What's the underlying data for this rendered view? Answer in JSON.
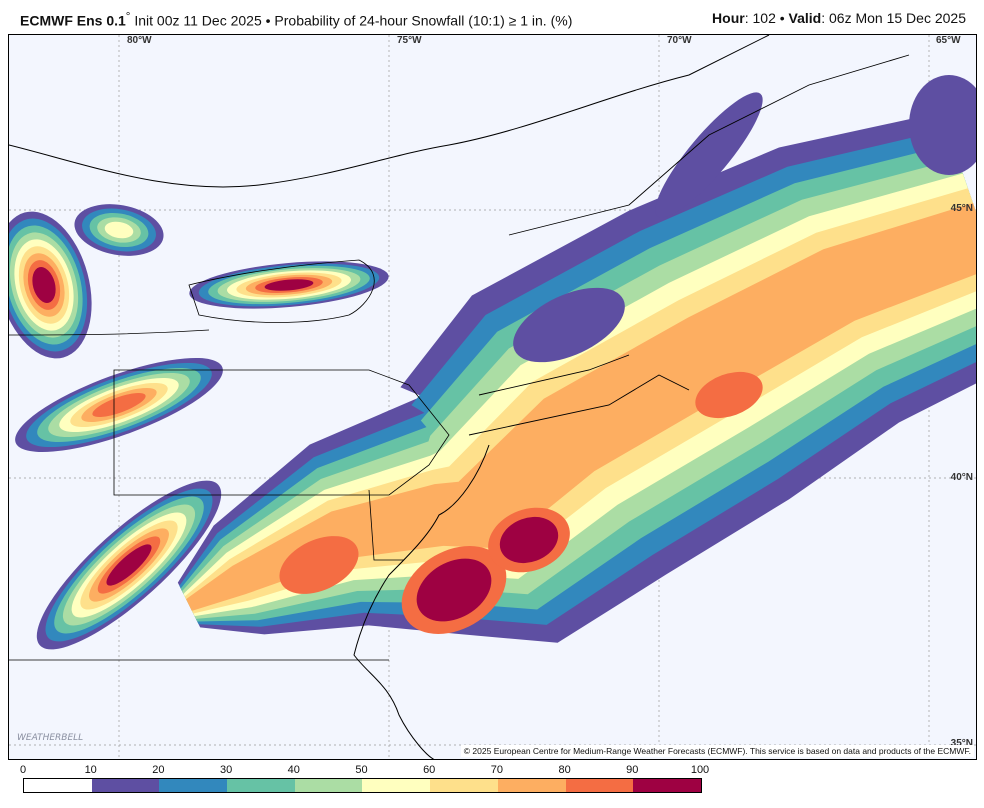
{
  "header": {
    "model": "ECMWF Ens 0.1",
    "degree": "°",
    "init": " Init 00z 11 Dec 2025 • Probability of 24-hour Snowfall (10:1) ≥ 1 in. (%)",
    "hour_label": "Hour",
    "hour": ": 102 • ",
    "valid_label": "Valid",
    "valid": ": 06z Mon 15 Dec 2025"
  },
  "map": {
    "lon_labels": [
      "80°W",
      "75°W",
      "70°W",
      "65°W"
    ],
    "lat_labels": [
      "45°N",
      "40°N",
      "35°N"
    ],
    "copyright": "© 2025 European Centre for Medium-Range Weather Forecasts (ECMWF). This service is based on data and products of the ECMWF.",
    "logo": "WEATHERBELL",
    "background_color": "#f3f6fe"
  },
  "legend": {
    "ticks": [
      "0",
      "10",
      "20",
      "30",
      "40",
      "50",
      "60",
      "70",
      "80",
      "90",
      "100"
    ],
    "colors": [
      "#ffffff",
      "#5e4fa2",
      "#3288bd",
      "#66c2a5",
      "#abdda4",
      "#ffffbf",
      "#fee08b",
      "#fdae61",
      "#f46d43",
      "#9e0142"
    ]
  }
}
